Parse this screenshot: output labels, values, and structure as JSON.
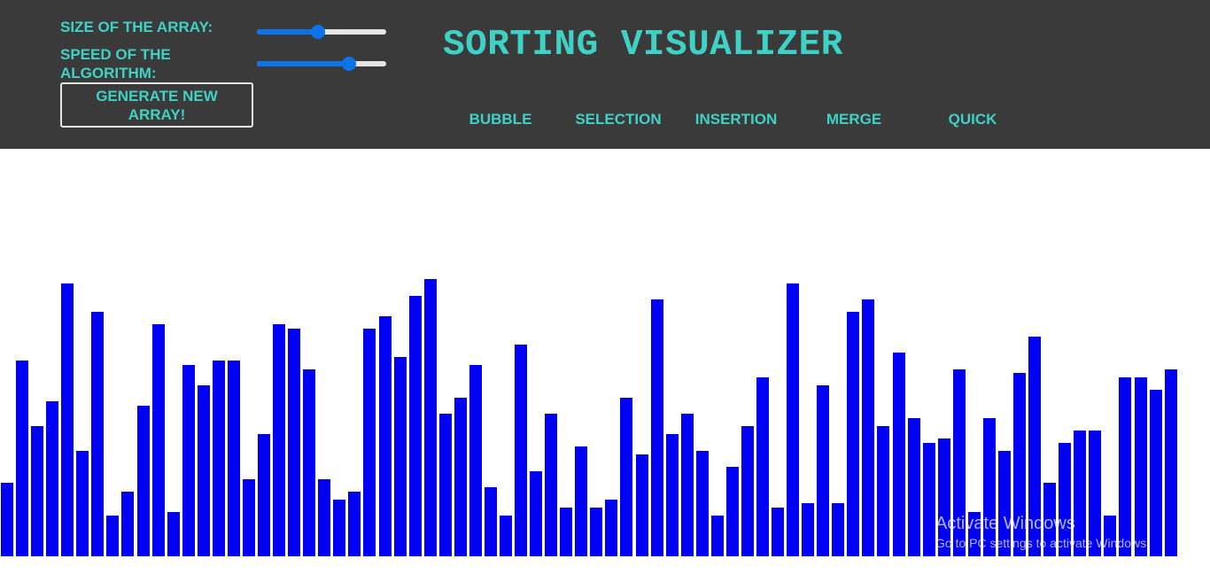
{
  "controls": {
    "size_label": "SIZE OF THE ARRAY:",
    "speed_label_line1": "SPEED OF THE",
    "speed_label_line2": "ALGORITHM:",
    "size_value": 0.46,
    "speed_value": 0.73,
    "generate_label": "GENERATE NEW ARRAY!"
  },
  "title": "SORTING VISUALIZER",
  "algorithms": [
    "BUBBLE",
    "SELECTION",
    "INSERTION",
    "MERGE",
    "QUICK"
  ],
  "colors": {
    "header_bg": "#3b3a3b",
    "accent_text": "#3fd1c4",
    "bar": "#0000f5",
    "slider": "#0a74e8"
  },
  "array": {
    "max_value": 336,
    "values": [
      83,
      221,
      147,
      175,
      308,
      119,
      276,
      46,
      73,
      170,
      262,
      50,
      216,
      193,
      221,
      221,
      87,
      138,
      262,
      257,
      211,
      87,
      64,
      73,
      257,
      271,
      225,
      294,
      313,
      161,
      179,
      216,
      78,
      46,
      239,
      96,
      161,
      55,
      124,
      55,
      64,
      179,
      115,
      290,
      138,
      161,
      119,
      46,
      101,
      147,
      202,
      55,
      308,
      60,
      193,
      60,
      276,
      290,
      147,
      230,
      156,
      128,
      133,
      211,
      50,
      156,
      119,
      207,
      248,
      83,
      128,
      142,
      142,
      46,
      202,
      202,
      188,
      211
    ]
  },
  "watermark": {
    "title": "Activate Windows",
    "subtitle": "Go to PC settings to activate Windows."
  }
}
